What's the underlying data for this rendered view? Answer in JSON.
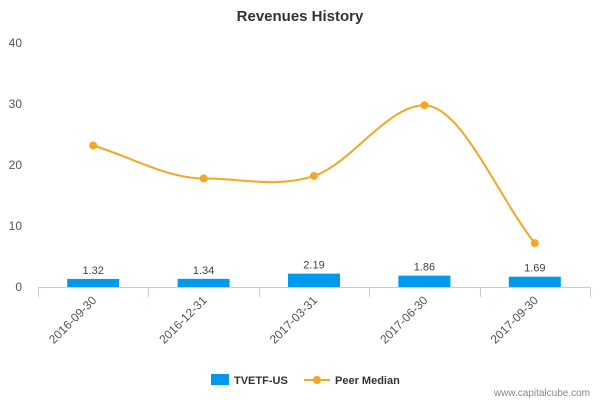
{
  "chart_data": {
    "type": "bar",
    "title": "Revenues History",
    "categories": [
      "2016-09-30",
      "2016-12-31",
      "2017-03-31",
      "2017-06-30",
      "2017-09-30"
    ],
    "ylim": [
      0,
      40
    ],
    "yticks": [
      0,
      10,
      20,
      30,
      40
    ],
    "grid": false,
    "legend_position": "bottom",
    "series": [
      {
        "name": "TVETF-US",
        "type": "bar",
        "color": "#0099ee",
        "values": [
          1.32,
          1.34,
          2.19,
          1.86,
          1.69
        ],
        "labels": [
          "1.32",
          "1.34",
          "2.19",
          "1.86",
          "1.69"
        ]
      },
      {
        "name": "Peer Median",
        "type": "line",
        "color": "#f5a623",
        "values": [
          23.2,
          17.8,
          18.2,
          29.8,
          7.2
        ]
      }
    ]
  },
  "credit": "www.capitalcube.com"
}
